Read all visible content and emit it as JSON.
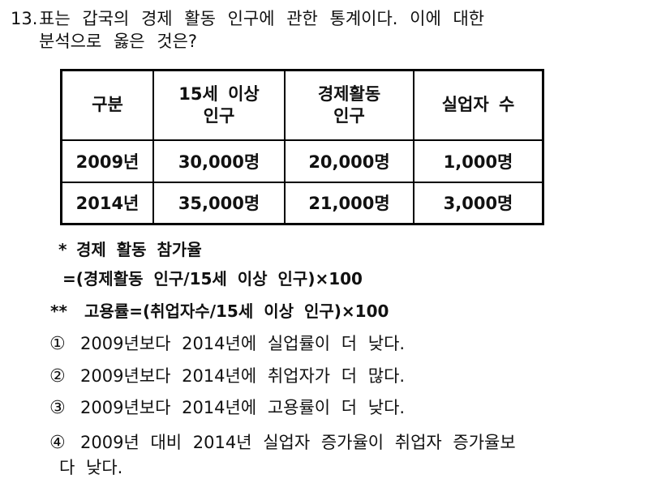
{
  "question": {
    "number": "13.",
    "line1": "표는 갑국의 경제 활동 인구에 관한 통계이다. 이에 대한",
    "line2": "분석으로 옳은 것은?"
  },
  "table": {
    "headers": [
      "구분",
      "15세 이상\n인구",
      "경제활동\n인구",
      "실업자 수"
    ],
    "rows": [
      [
        "2009년",
        "30,000명",
        "20,000명",
        "1,000명"
      ],
      [
        "2014년",
        "35,000명",
        "21,000명",
        "3,000명"
      ]
    ]
  },
  "notes": {
    "note1_marker": "*",
    "note1_title": "경제 활동 참가율",
    "note1_formula": "=(경제활동 인구/15세 이상 인구)×100",
    "note2_marker": "**",
    "note2_text": "고용률=(취업자수/15세 이상 인구)×100"
  },
  "options": [
    {
      "marker": "①",
      "text": "2009년보다 2014년에 실업률이 더 낮다."
    },
    {
      "marker": "②",
      "text": "2009년보다 2014년에 취업자가 더 많다."
    },
    {
      "marker": "③",
      "text": "2009년보다 2014년에 고용률이 더 낮다."
    },
    {
      "marker": "④",
      "text": "2009년 대비 2014년 실업자 증가율이 취업자 증가율보",
      "text2": "다 낮다."
    }
  ],
  "colors": {
    "text": "#111111",
    "background": "#ffffff",
    "table_border": "#000000"
  }
}
